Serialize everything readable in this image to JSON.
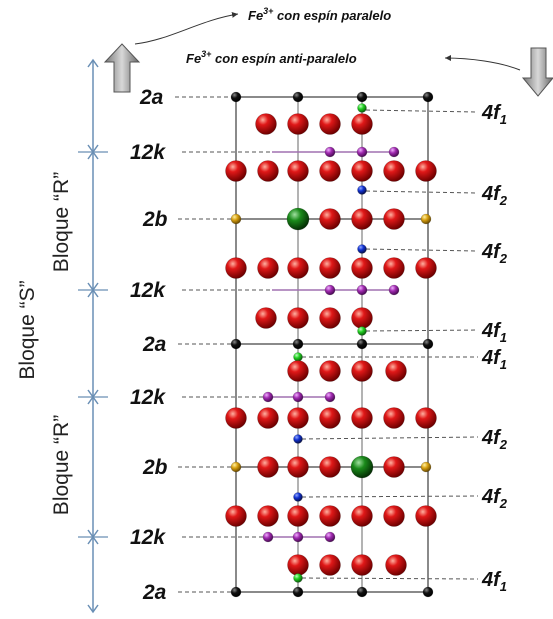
{
  "legend": {
    "parallel": {
      "ion": "Fe",
      "charge": "3+",
      "text": " con espín paralelo"
    },
    "antiparallel": {
      "ion": "Fe",
      "charge": "3+",
      "text": " con espín anti-paralelo"
    }
  },
  "blocks": {
    "outer": "Bloque “S”",
    "r_upper": "Bloque “R”",
    "r_lower": "Bloque “R”"
  },
  "left_sites": [
    "2a",
    "12k",
    "2b",
    "12k",
    "2a",
    "12k",
    "2b",
    "12k",
    "2a"
  ],
  "right_sites": [
    {
      "main": "4f",
      "sub": "1"
    },
    {
      "main": "4f",
      "sub": "2"
    },
    {
      "main": "4f",
      "sub": "2"
    },
    {
      "main": "4f",
      "sub": "1"
    },
    {
      "main": "4f",
      "sub": "1"
    },
    {
      "main": "4f",
      "sub": "2"
    },
    {
      "main": "4f",
      "sub": "2"
    },
    {
      "main": "4f",
      "sub": "1"
    }
  ],
  "colors": {
    "oxygen": "#d01010",
    "fe_12k": "#a02ab0",
    "fe_4f2": "#1030d0",
    "fe_4f1": "#20c020",
    "fe_2b": "#d0a010",
    "ba": "#1a8a1a",
    "fe_2a": "#111111",
    "frame": "#8a8a8a",
    "axis": "#6a8fb5"
  }
}
